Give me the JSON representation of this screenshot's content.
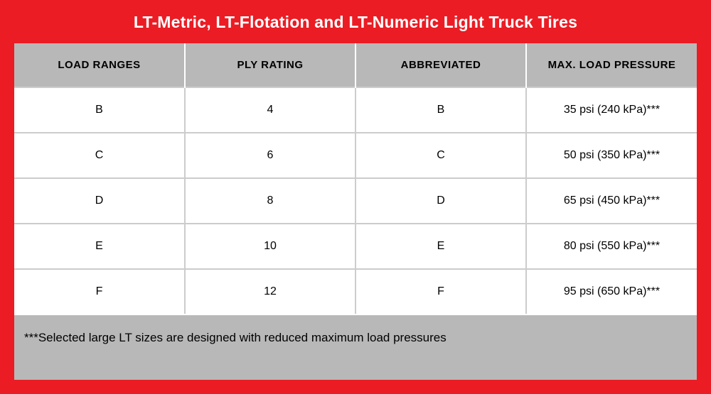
{
  "title": "LT-Metric, LT-Flotation and LT-Numeric Light Truck Tires",
  "colors": {
    "bg_red": "#eb1c24",
    "header_gray": "#b8b8b8",
    "row_bg": "#ffffff",
    "border_gray": "#cccccc"
  },
  "table": {
    "columns": [
      "LOAD RANGES",
      "PLY RATING",
      "ABBREVIATED",
      "MAX. LOAD PRESSURE"
    ],
    "rows": [
      [
        "B",
        "4",
        "B",
        "35 psi (240 kPa)***"
      ],
      [
        "C",
        "6",
        "C",
        "50 psi (350 kPa)***"
      ],
      [
        "D",
        "8",
        "D",
        "65 psi (450 kPa)***"
      ],
      [
        "E",
        "10",
        "E",
        "80 psi (550 kPa)***"
      ],
      [
        "F",
        "12",
        "F",
        "95 psi (650 kPa)***"
      ]
    ]
  },
  "footnote": "***Selected large LT sizes are designed with reduced maximum load pressures"
}
